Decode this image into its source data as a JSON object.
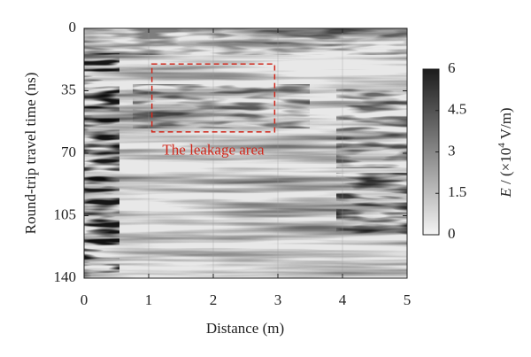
{
  "chart_data": {
    "type": "heatmap",
    "xlabel": "Distance (m)",
    "ylabel": "Round-trip travel time (ns)",
    "xlim": [
      0,
      5
    ],
    "xticks": [
      0,
      1,
      2,
      3,
      4,
      5
    ],
    "ylim": [
      140,
      0
    ],
    "yticks": [
      0,
      35,
      70,
      105,
      140
    ],
    "grid": true,
    "colormap": [
      "#f4f4f4",
      "#1c1c1c"
    ],
    "colorbar": {
      "label": {
        "symbol": "E",
        "before_exponent": " / (×10",
        "exponent": "4",
        "after_exponent": " V/m)"
      },
      "lim": [
        0,
        6
      ],
      "ticks": [
        0,
        1.5,
        3,
        4.5,
        6
      ]
    },
    "annotation": {
      "text": "The leakage area",
      "color": "#d0281c",
      "xlim": [
        1.05,
        2.95
      ],
      "ylim": [
        58,
        20
      ]
    }
  }
}
